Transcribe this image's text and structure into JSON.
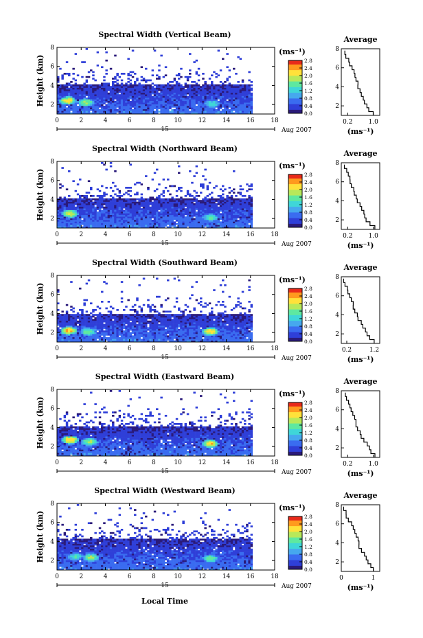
{
  "figure": {
    "xlabel": "Local Time",
    "date_day": "15",
    "date_month": "Aug 2007",
    "ylabel": "Height (km)",
    "x_ticks": [
      "0",
      "2",
      "4",
      "6",
      "8",
      "10",
      "12",
      "14",
      "16",
      "18"
    ],
    "y_ticks": [
      "2",
      "4",
      "6",
      "8"
    ],
    "colorbar_unit": "(ms⁻¹)",
    "colorbar_ticks": [
      "0.0",
      "0.4",
      "0.8",
      "1.2",
      "1.6",
      "2.0",
      "2.4",
      "2.8"
    ],
    "avg_title": "Average",
    "avg_xlabel": "(ms⁻¹)",
    "colormap": [
      "#ffffff",
      "#2a1a7a",
      "#2f3fd8",
      "#3a6cf0",
      "#46a8ee",
      "#3fd6d8",
      "#5ee8a0",
      "#b8e85a",
      "#ffe13a",
      "#ff9a1e",
      "#e82a1a"
    ]
  },
  "chart_data": [
    {
      "type": "heatmap",
      "title": "Spectral Width (Vertical Beam)",
      "xlim": [
        0,
        18
      ],
      "ylim": [
        1,
        8
      ],
      "data_time_range": [
        0,
        16
      ],
      "zlim": [
        0,
        2.8
      ],
      "x_ticks": [
        "0",
        "2",
        "4",
        "6",
        "8",
        "10",
        "12",
        "14",
        "16",
        "18"
      ],
      "y_ticks": [
        "2",
        "4",
        "6",
        "8"
      ],
      "echo_top_km": 4.2,
      "hotspots": [
        {
          "x": 0.8,
          "y": 2.5,
          "value": 2.4
        },
        {
          "x": 2.3,
          "y": 2.3,
          "value": 2.0
        },
        {
          "x": 12.7,
          "y": 2.2,
          "value": 1.5
        }
      ],
      "average_profile": {
        "xlabel": "(ms⁻¹)",
        "xlim": [
          0,
          1.2
        ],
        "x_ticks": [
          "0.2",
          "1.0"
        ],
        "ylim": [
          1,
          8
        ],
        "y_ticks": [
          "2",
          "4",
          "6",
          "8"
        ],
        "height_km": [
          1.2,
          1.6,
          2.0,
          2.4,
          2.8,
          3.2,
          3.6,
          4.0,
          4.4,
          4.8,
          5.2,
          5.6,
          6.0,
          6.4,
          6.8,
          7.2,
          7.6
        ],
        "width_ms": [
          1.0,
          0.85,
          0.78,
          0.74,
          0.7,
          0.62,
          0.58,
          0.54,
          0.5,
          0.46,
          0.42,
          0.38,
          0.32,
          0.28,
          0.22,
          0.16,
          0.1
        ]
      }
    },
    {
      "type": "heatmap",
      "title": "Spectral Width (Northward Beam)",
      "xlim": [
        0,
        18
      ],
      "ylim": [
        1,
        8
      ],
      "data_time_range": [
        0,
        16
      ],
      "zlim": [
        0,
        2.8
      ],
      "x_ticks": [
        "0",
        "2",
        "4",
        "6",
        "8",
        "10",
        "12",
        "14",
        "16",
        "18"
      ],
      "y_ticks": [
        "2",
        "4",
        "6",
        "8"
      ],
      "echo_top_km": 4.2,
      "hotspots": [
        {
          "x": 1.0,
          "y": 2.6,
          "value": 2.2
        },
        {
          "x": 12.6,
          "y": 2.2,
          "value": 1.6
        }
      ],
      "average_profile": {
        "xlabel": "(ms⁻¹)",
        "xlim": [
          0,
          1.2
        ],
        "x_ticks": [
          "0.2",
          "1.0"
        ],
        "ylim": [
          1,
          8
        ],
        "y_ticks": [
          "2",
          "4",
          "6",
          "8"
        ],
        "height_km": [
          1.2,
          1.6,
          2.0,
          2.4,
          2.8,
          3.2,
          3.6,
          4.0,
          4.4,
          4.8,
          5.2,
          5.6,
          6.0,
          6.4,
          6.8,
          7.2,
          7.6
        ],
        "width_ms": [
          1.05,
          0.9,
          0.8,
          0.74,
          0.68,
          0.62,
          0.56,
          0.5,
          0.46,
          0.42,
          0.38,
          0.34,
          0.3,
          0.26,
          0.2,
          0.16,
          0.1
        ]
      }
    },
    {
      "type": "heatmap",
      "title": "Spectral Width (Southward Beam)",
      "xlim": [
        0,
        18
      ],
      "ylim": [
        1,
        8
      ],
      "data_time_range": [
        0,
        16
      ],
      "zlim": [
        0,
        2.8
      ],
      "x_ticks": [
        "0",
        "2",
        "4",
        "6",
        "8",
        "10",
        "12",
        "14",
        "16",
        "18"
      ],
      "y_ticks": [
        "2",
        "4",
        "6",
        "8"
      ],
      "echo_top_km": 4.0,
      "hotspots": [
        {
          "x": 0.9,
          "y": 2.3,
          "value": 2.6
        },
        {
          "x": 2.5,
          "y": 2.2,
          "value": 1.8
        },
        {
          "x": 12.6,
          "y": 2.2,
          "value": 2.4
        }
      ],
      "average_profile": {
        "xlabel": "(ms⁻¹)",
        "xlim": [
          0,
          1.4
        ],
        "x_ticks": [
          "0.2",
          "1.2"
        ],
        "ylim": [
          1,
          8
        ],
        "y_ticks": [
          "2",
          "4",
          "6",
          "8"
        ],
        "height_km": [
          1.2,
          1.6,
          2.0,
          2.4,
          2.8,
          3.2,
          3.6,
          4.0,
          4.4,
          4.8,
          5.2,
          5.6,
          6.0,
          6.4,
          6.8,
          7.2,
          7.6
        ],
        "width_ms": [
          1.2,
          1.05,
          0.95,
          0.88,
          0.78,
          0.7,
          0.62,
          0.56,
          0.5,
          0.46,
          0.42,
          0.38,
          0.32,
          0.26,
          0.2,
          0.16,
          0.1
        ]
      }
    },
    {
      "type": "heatmap",
      "title": "Spectral Width (Eastward Beam)",
      "xlim": [
        0,
        18
      ],
      "ylim": [
        1,
        8
      ],
      "data_time_range": [
        0,
        16
      ],
      "zlim": [
        0,
        2.8
      ],
      "x_ticks": [
        "0",
        "2",
        "4",
        "6",
        "8",
        "10",
        "12",
        "14",
        "16",
        "18"
      ],
      "y_ticks": [
        "2",
        "4",
        "6",
        "8"
      ],
      "echo_top_km": 4.2,
      "hotspots": [
        {
          "x": 1.0,
          "y": 2.8,
          "value": 2.6
        },
        {
          "x": 2.6,
          "y": 2.6,
          "value": 2.0
        },
        {
          "x": 12.6,
          "y": 2.4,
          "value": 2.4
        }
      ],
      "average_profile": {
        "xlabel": "(ms⁻¹)",
        "xlim": [
          0,
          1.2
        ],
        "x_ticks": [
          "0.2",
          "1.0"
        ],
        "ylim": [
          1,
          8
        ],
        "y_ticks": [
          "2",
          "4",
          "6",
          "8"
        ],
        "height_km": [
          1.2,
          1.6,
          2.0,
          2.4,
          2.8,
          3.2,
          3.6,
          4.0,
          4.4,
          4.8,
          5.2,
          5.6,
          6.0,
          6.4,
          6.8,
          7.2,
          7.6
        ],
        "width_ms": [
          1.05,
          0.95,
          0.88,
          0.8,
          0.72,
          0.64,
          0.58,
          0.52,
          0.48,
          0.44,
          0.4,
          0.36,
          0.3,
          0.26,
          0.2,
          0.16,
          0.1
        ]
      }
    },
    {
      "type": "heatmap",
      "title": "Spectral Width (Westward Beam)",
      "xlim": [
        0,
        18
      ],
      "ylim": [
        1,
        8
      ],
      "data_time_range": [
        0,
        16
      ],
      "zlim": [
        0,
        2.8
      ],
      "x_ticks": [
        "0",
        "2",
        "4",
        "6",
        "8",
        "10",
        "12",
        "14",
        "16",
        "18"
      ],
      "y_ticks": [
        "2",
        "4",
        "6",
        "8"
      ],
      "echo_top_km": 4.4,
      "hotspots": [
        {
          "x": 1.4,
          "y": 2.5,
          "value": 1.6
        },
        {
          "x": 2.7,
          "y": 2.4,
          "value": 2.0
        },
        {
          "x": 12.6,
          "y": 2.3,
          "value": 1.8
        }
      ],
      "average_profile": {
        "xlabel": "(ms⁻¹)",
        "xlim": [
          0,
          1.2
        ],
        "x_ticks": [
          "0",
          "1"
        ],
        "ylim": [
          1,
          8
        ],
        "y_ticks": [
          "2",
          "4",
          "6",
          "8"
        ],
        "height_km": [
          1.2,
          1.6,
          2.0,
          2.4,
          2.8,
          3.2,
          3.6,
          4.0,
          4.4,
          4.8,
          5.2,
          5.6,
          6.0,
          6.4,
          6.8,
          7.2,
          7.6
        ],
        "width_ms": [
          1.0,
          0.9,
          0.82,
          0.76,
          0.7,
          0.64,
          0.58,
          0.54,
          0.5,
          0.46,
          0.4,
          0.36,
          0.3,
          0.24,
          0.18,
          0.12,
          0.06
        ]
      }
    }
  ]
}
